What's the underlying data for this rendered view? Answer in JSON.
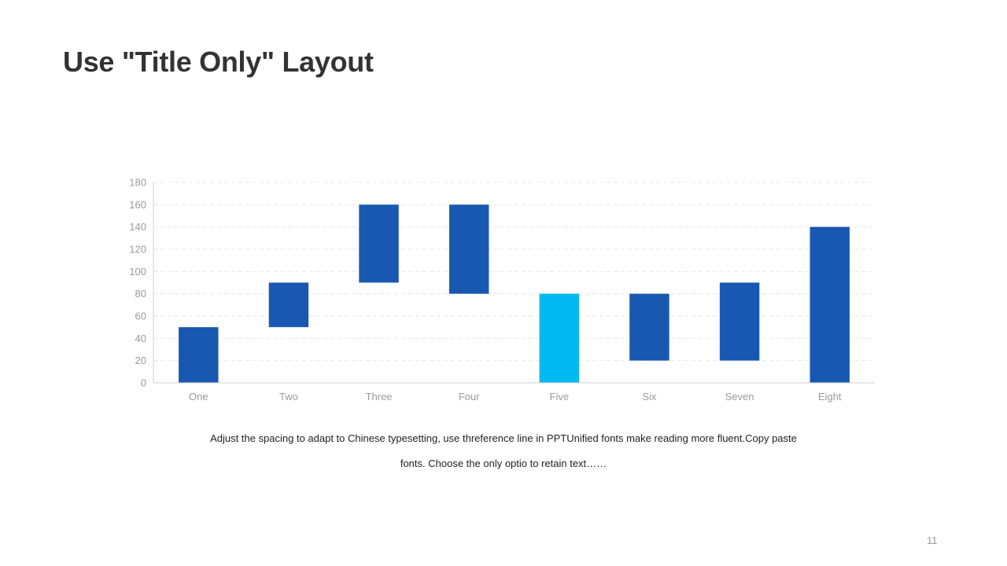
{
  "slide": {
    "title": "Use \"Title Only\" Layout",
    "caption_line1": "Adjust the spacing to adapt to Chinese  typesetting, use threference line in PPTUnified  fonts make reading more fluent.Copy paste",
    "caption_line2": "fonts. Choose the only optio to retain text……",
    "page_number": "11"
  },
  "colors": {
    "bar": "#1858b0",
    "highlight": "#00b9f2",
    "grid": "#e6e6e6",
    "axis": "#d0d0d0",
    "tick_text": "#9a9a9a"
  },
  "chart_data": {
    "type": "bar",
    "subtype": "floating",
    "categories": [
      "One",
      "Two",
      "Three",
      "Four",
      "Five",
      "Six",
      "Seven",
      "Eight"
    ],
    "ranges": [
      [
        0,
        50
      ],
      [
        50,
        90
      ],
      [
        90,
        160
      ],
      [
        80,
        160
      ],
      [
        0,
        80
      ],
      [
        20,
        80
      ],
      [
        20,
        90
      ],
      [
        0,
        140
      ]
    ],
    "highlight_index": 4,
    "ylim": [
      0,
      180
    ],
    "yticks": [
      0,
      20,
      40,
      60,
      80,
      100,
      120,
      140,
      160,
      180
    ],
    "grid": true,
    "legend": "none",
    "title": "",
    "xlabel": "",
    "ylabel": ""
  }
}
